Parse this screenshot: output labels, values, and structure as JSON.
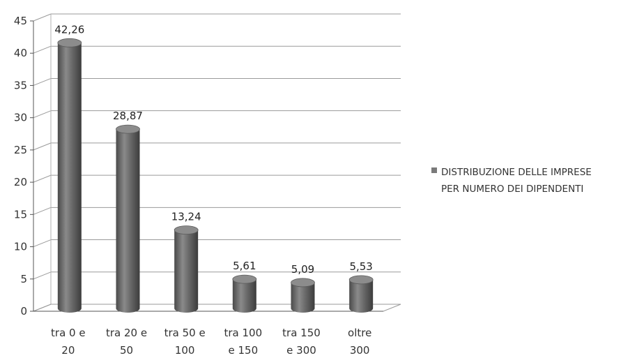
{
  "chart_data": {
    "type": "bar",
    "style": "3d-cylinder",
    "categories": [
      [
        "tra 0 e",
        "20"
      ],
      [
        "tra 20 e",
        "50"
      ],
      [
        "tra 50 e",
        "100"
      ],
      [
        "tra 100",
        "e 150"
      ],
      [
        "tra 150",
        "e 300"
      ],
      [
        "oltre",
        "300"
      ]
    ],
    "series": [
      {
        "name": "DISTRIBUZIONE DELLE IMPRESE PER NUMERO DEI DIPENDENTI",
        "values": [
          42.26,
          28.87,
          13.24,
          5.61,
          5.09,
          5.53
        ],
        "labels": [
          "42,26",
          "28,87",
          "13,24",
          "5,61",
          "5,09",
          "5,53"
        ],
        "color": "#6e6e6e"
      }
    ],
    "yticks": [
      "0",
      "5",
      "10",
      "15",
      "20",
      "25",
      "30",
      "35",
      "40",
      "45"
    ],
    "ylim": [
      0,
      45
    ],
    "grid": true,
    "legend_position": "right",
    "legend": {
      "line1": "DISTRIBUZIONE DELLE IMPRESE",
      "line2": "PER NUMERO DEI DIPENDENTI"
    }
  }
}
